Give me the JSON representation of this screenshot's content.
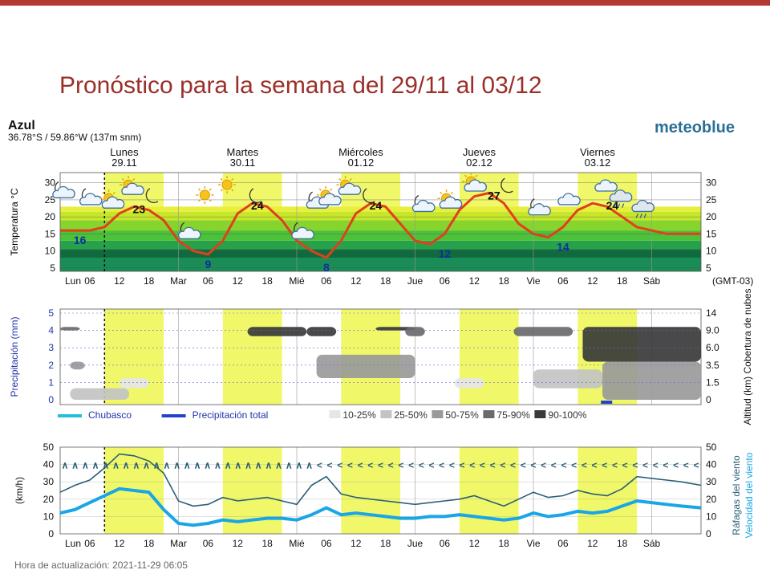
{
  "slide": {
    "title": "Pronóstico para la semana del 29/11 al 03/12"
  },
  "header": {
    "location": "Azul",
    "coords": "36.78°S / 59.86°W (137m snm)",
    "brand": "meteoblue",
    "update": "Hora de actualización: 2021-11-29 06:05"
  },
  "days": [
    {
      "name": "Lunes",
      "date": "29.11"
    },
    {
      "name": "Martes",
      "date": "30.11"
    },
    {
      "name": "Miércoles",
      "date": "01.12"
    },
    {
      "name": "Jueves",
      "date": "02.12"
    },
    {
      "name": "Viernes",
      "date": "03.12"
    }
  ],
  "colors": {
    "accent": "#b23a33",
    "day_band": "#f0f86a",
    "temp_line": "#e0401c",
    "wind_speed": "#1aa6e6",
    "gusts": "#2a5f78",
    "brand": "#2a6f96",
    "axis_blue": "#2233aa"
  },
  "icons": [
    "moon-cloud-icon",
    "cloud-moon-icon",
    "sun-cloud-icon",
    "sun-cloud-icon",
    "moon-icon",
    "moon-cloud-icon",
    "sun-icon",
    "sun-icon",
    "moon-icon",
    "moon-cloud-icon",
    "moon-cloud-icon",
    "sun-cloud-icon",
    "cloud-sun-icon",
    "moon-icon",
    "moon-cloud-icon",
    "sun-cloud-icon",
    "sun-cloud-icon",
    "moon-icon",
    "moon-cloud-icon",
    "cloud-icon",
    "cloud-icon",
    "rain-cloud-icon",
    "rain-cloud-icon"
  ],
  "chart_data": [
    {
      "type": "line",
      "name": "temperature",
      "ylabel": "Temperatura °C",
      "yticks": [
        5,
        10,
        15,
        20,
        25,
        30
      ],
      "ylim": [
        4,
        33
      ],
      "x_tick_labels": [
        "Lun",
        "06",
        "12",
        "18",
        "Mar",
        "06",
        "12",
        "18",
        "Mié",
        "06",
        "12",
        "18",
        "Jue",
        "06",
        "12",
        "18",
        "Vie",
        "06",
        "12",
        "18",
        "Sáb"
      ],
      "timezone_label": "(GMT-03)",
      "x_hours": [
        0,
        3,
        6,
        9,
        12,
        15,
        18,
        21,
        24,
        27,
        30,
        33,
        36,
        39,
        42,
        45,
        48,
        51,
        54,
        57,
        60,
        63,
        66,
        69,
        72,
        75,
        78,
        81,
        84,
        87,
        90,
        93,
        96,
        99,
        102,
        105,
        108,
        111,
        114,
        117,
        120,
        123,
        126,
        130
      ],
      "values": [
        16,
        16,
        16,
        17,
        21,
        23,
        22,
        19,
        13,
        10,
        9,
        13,
        21,
        24,
        23,
        19,
        13,
        10,
        8,
        13,
        21,
        24,
        23,
        18,
        13,
        12,
        15,
        22,
        26,
        27,
        24,
        18,
        15,
        14,
        17,
        22,
        24,
        23,
        20,
        17,
        16,
        15,
        15,
        15
      ],
      "annotations": [
        {
          "label": "16",
          "x": 4,
          "y": 16,
          "kind": "min"
        },
        {
          "label": "23",
          "x": 16,
          "y": 23,
          "kind": "max"
        },
        {
          "label": "9",
          "x": 30,
          "y": 9,
          "kind": "min"
        },
        {
          "label": "24",
          "x": 40,
          "y": 24,
          "kind": "max"
        },
        {
          "label": "8",
          "x": 54,
          "y": 8,
          "kind": "min"
        },
        {
          "label": "24",
          "x": 64,
          "y": 24,
          "kind": "max"
        },
        {
          "label": "12",
          "x": 78,
          "y": 12,
          "kind": "min"
        },
        {
          "label": "27",
          "x": 88,
          "y": 27,
          "kind": "max"
        },
        {
          "label": "14",
          "x": 102,
          "y": 14,
          "kind": "min"
        },
        {
          "label": "24",
          "x": 112,
          "y": 24,
          "kind": "max"
        }
      ]
    },
    {
      "type": "heatmap",
      "name": "clouds_precipitation",
      "ylabel_left": "Precipitación (mm)",
      "yticks_left": [
        0,
        1,
        2,
        3,
        4,
        5
      ],
      "ylabel_right": "Altitud (km) Cobertura de nubes",
      "yticks_right": [
        "0",
        "1.5",
        "3.5",
        "6.0",
        "9.0",
        "14"
      ],
      "legend": [
        {
          "label": "Chubasco",
          "color": "#1fc0d8",
          "kind": "line"
        },
        {
          "label": "Precipitación total",
          "color": "#2244cc",
          "kind": "line"
        },
        {
          "label": "10-25%",
          "color": "#e6e6e6",
          "kind": "box"
        },
        {
          "label": "25-50%",
          "color": "#c3c3c3",
          "kind": "box"
        },
        {
          "label": "50-75%",
          "color": "#9a9a9a",
          "kind": "box"
        },
        {
          "label": "75-90%",
          "color": "#6a6a6a",
          "kind": "box"
        },
        {
          "label": "90-100%",
          "color": "#3a3a3a",
          "kind": "box"
        }
      ],
      "cloud_patches": [
        {
          "x": [
            0,
            4
          ],
          "alt_km": [
            9,
            10
          ],
          "cover": "75-90%"
        },
        {
          "x": [
            2,
            5
          ],
          "alt_km": [
            3,
            4
          ],
          "cover": "50-75%"
        },
        {
          "x": [
            2,
            14
          ],
          "alt_km": [
            0,
            1
          ],
          "cover": "25-50%"
        },
        {
          "x": [
            12,
            18
          ],
          "alt_km": [
            1,
            2
          ],
          "cover": "10-25%"
        },
        {
          "x": [
            38,
            50
          ],
          "alt_km": [
            8,
            10
          ],
          "cover": "90-100%"
        },
        {
          "x": [
            50,
            56
          ],
          "alt_km": [
            8,
            10
          ],
          "cover": "90-100%"
        },
        {
          "x": [
            52,
            72
          ],
          "alt_km": [
            2,
            5
          ],
          "cover": "50-75%"
        },
        {
          "x": [
            64,
            72
          ],
          "alt_km": [
            9,
            10
          ],
          "cover": "90-100%"
        },
        {
          "x": [
            70,
            74
          ],
          "alt_km": [
            8,
            10
          ],
          "cover": "75-90%"
        },
        {
          "x": [
            80,
            86
          ],
          "alt_km": [
            1,
            2
          ],
          "cover": "10-25%"
        },
        {
          "x": [
            92,
            104
          ],
          "alt_km": [
            8,
            10
          ],
          "cover": "75-90%"
        },
        {
          "x": [
            96,
            110
          ],
          "alt_km": [
            1,
            3
          ],
          "cover": "25-50%"
        },
        {
          "x": [
            106,
            130
          ],
          "alt_km": [
            4,
            10
          ],
          "cover": "90-100%"
        },
        {
          "x": [
            110,
            130
          ],
          "alt_km": [
            0,
            4
          ],
          "cover": "50-75%"
        }
      ],
      "total_precipitation": [
        {
          "x": 111,
          "mm": 0.3
        }
      ]
    },
    {
      "type": "line",
      "name": "wind",
      "ylabel_left": "(km/h)",
      "yticks": [
        0,
        10,
        20,
        30,
        40,
        50
      ],
      "ylim": [
        0,
        50
      ],
      "series_labels": [
        "Ráfagas del viento",
        "Velocidad del viento"
      ],
      "x_hours": [
        0,
        3,
        6,
        9,
        12,
        15,
        18,
        21,
        24,
        27,
        30,
        33,
        36,
        39,
        42,
        45,
        48,
        51,
        54,
        57,
        60,
        63,
        66,
        69,
        72,
        75,
        78,
        81,
        84,
        87,
        90,
        93,
        96,
        99,
        102,
        105,
        108,
        111,
        114,
        117,
        120,
        123,
        126,
        130
      ],
      "series": [
        {
          "name": "Ráfagas del viento",
          "values": [
            24,
            28,
            31,
            38,
            46,
            45,
            42,
            35,
            19,
            16,
            17,
            21,
            19,
            20,
            21,
            19,
            17,
            28,
            33,
            23,
            21,
            20,
            19,
            18,
            17,
            18,
            19,
            20,
            22,
            19,
            16,
            20,
            24,
            21,
            22,
            25,
            23,
            22,
            26,
            33,
            32,
            31,
            30,
            28
          ]
        },
        {
          "name": "Velocidad del viento",
          "values": [
            12,
            14,
            18,
            22,
            26,
            25,
            24,
            14,
            6,
            5,
            6,
            8,
            7,
            8,
            9,
            9,
            8,
            11,
            15,
            11,
            12,
            11,
            10,
            9,
            9,
            10,
            10,
            11,
            10,
            9,
            8,
            9,
            12,
            10,
            11,
            13,
            12,
            13,
            16,
            19,
            18,
            17,
            16,
            15
          ]
        }
      ],
      "direction_arrows": "∧∧∧∧∧∧∧∧∧∧∧∧∧∧∧∧∧∧∧∧∧∧∧∧∧<<<<<<<<<<<<<<<<<<<<<<<<<<<<<<<<<<<<<<"
    }
  ]
}
